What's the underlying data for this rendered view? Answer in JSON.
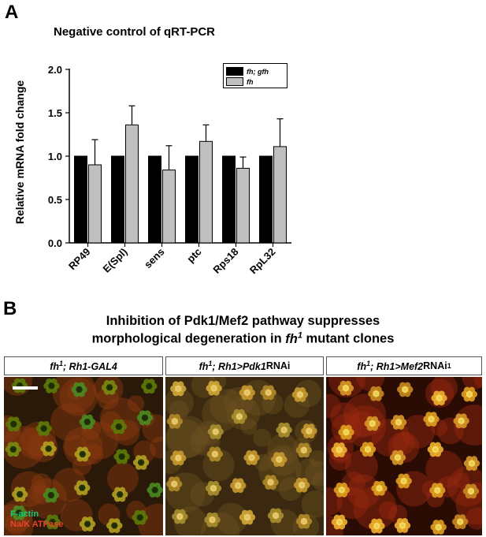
{
  "panel_a_letter": "A",
  "panel_b_letter": "B",
  "chart_data": {
    "type": "bar",
    "title": "Negative control of qRT-PCR",
    "xlabel": "",
    "ylabel": "Relative mRNA fold change",
    "categories": [
      "RP49",
      "E(Spl)",
      "sens",
      "ptc",
      "Rps18",
      "RpL32"
    ],
    "ylim": [
      0,
      2.0
    ],
    "yticks": [
      "0.0",
      "0.5",
      "1.0",
      "1.5",
      "2.0"
    ],
    "legend_position": "top-right",
    "series": [
      {
        "name": "fh; gfh",
        "color": "#000000",
        "values": [
          1.0,
          1.0,
          1.0,
          1.0,
          1.0,
          1.0
        ],
        "errors": [
          0,
          0,
          0,
          0,
          0,
          0
        ]
      },
      {
        "name": "fh",
        "color": "#c0c0c0",
        "values": [
          0.9,
          1.36,
          0.84,
          1.17,
          0.86,
          1.11
        ],
        "errors": [
          0.29,
          0.22,
          0.28,
          0.19,
          0.13,
          0.32
        ]
      }
    ]
  },
  "panel_b": {
    "title_line1": "Inhibition of Pdk1/Mef2 pathway suppresses",
    "title_line2_pre": "morphological degeneration in ",
    "title_line2_gene": "fh",
    "title_line2_sup": "1",
    "title_line2_post": " mutant clones",
    "labels": [
      {
        "gene": "fh",
        "sup": "1",
        "rest_italic": "; Rh1-GAL4",
        "rest_plain": "",
        "tail_sup": ""
      },
      {
        "gene": "fh",
        "sup": "1",
        "rest_italic": "; Rh1>Pdk1",
        "rest_plain": " RNAi",
        "tail_sup": ""
      },
      {
        "gene": "fh",
        "sup": "1",
        "rest_italic": "; Rh1>Mef2",
        "rest_plain": " RNAi",
        "tail_sup": "1"
      }
    ],
    "stain_green": "F-actin",
    "stain_red": "Na/K ATPase"
  }
}
